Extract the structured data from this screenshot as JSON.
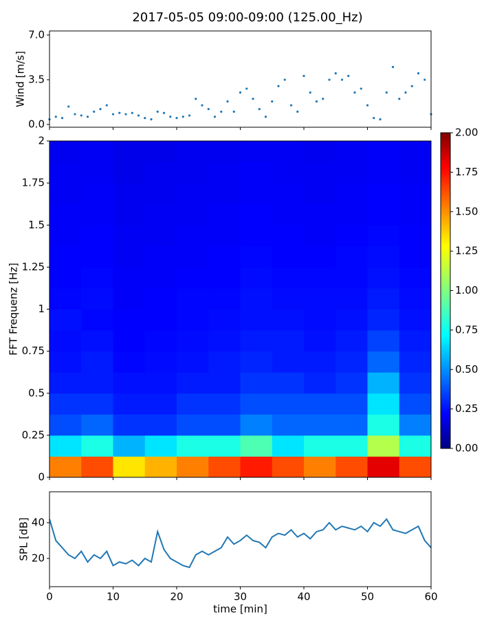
{
  "title": "2017-05-05 09:00-09:00 (125.00_Hz)",
  "chart_data": [
    {
      "type": "scatter",
      "ylabel": "Wind [m/s]",
      "color": "#1f77b4",
      "x": [
        0,
        1,
        2,
        3,
        4,
        5,
        6,
        7,
        8,
        9,
        10,
        11,
        12,
        13,
        14,
        15,
        16,
        17,
        18,
        19,
        20,
        21,
        22,
        23,
        24,
        25,
        26,
        27,
        28,
        29,
        30,
        31,
        32,
        33,
        34,
        35,
        36,
        37,
        38,
        39,
        40,
        41,
        42,
        43,
        44,
        45,
        46,
        47,
        48,
        49,
        50,
        51,
        52,
        53,
        54,
        55,
        56,
        57,
        58,
        59,
        60
      ],
      "values": [
        0.4,
        0.6,
        0.5,
        1.4,
        0.8,
        0.7,
        0.6,
        1.0,
        1.2,
        1.5,
        0.8,
        0.9,
        0.8,
        0.9,
        0.7,
        0.5,
        0.4,
        1.0,
        0.9,
        0.6,
        0.5,
        0.6,
        0.7,
        2.0,
        1.5,
        1.2,
        0.6,
        1.0,
        1.8,
        1.0,
        2.5,
        2.8,
        2.0,
        1.2,
        0.6,
        1.8,
        3.0,
        3.5,
        1.5,
        1.0,
        3.8,
        2.5,
        1.8,
        2.0,
        3.5,
        4.0,
        3.5,
        3.8,
        2.5,
        2.8,
        1.5,
        0.5,
        0.4,
        2.5,
        4.5,
        2.0,
        2.5,
        3.0,
        4.0,
        3.5,
        0.8
      ],
      "xlim": [
        0,
        60
      ],
      "xticks": [
        0,
        10,
        20,
        30,
        40,
        50,
        60
      ],
      "ylim": [
        -0.22,
        7.32
      ],
      "yticks": [
        {
          "value": 0,
          "label": "0.0"
        },
        {
          "value": 3.5,
          "label": "3.5"
        },
        {
          "value": 7,
          "label": "7.0"
        }
      ]
    },
    {
      "type": "heatmap",
      "ylabel": "FFT Frequenz [Hz]",
      "colormap": "jet",
      "clim": [
        0,
        2
      ],
      "xlim": [
        0,
        60
      ],
      "xticks": [
        0,
        10,
        20,
        30,
        40,
        50,
        60
      ],
      "ylim": [
        0,
        2
      ],
      "yticks": [
        0,
        0.25,
        0.5,
        0.75,
        1,
        1.25,
        1.5,
        1.75,
        2
      ],
      "cticks": [
        {
          "value": 0,
          "label": "0.00"
        },
        {
          "value": 0.25,
          "label": "0.25"
        },
        {
          "value": 0.5,
          "label": "0.50"
        },
        {
          "value": 0.75,
          "label": "0.75"
        },
        {
          "value": 1,
          "label": "1.00"
        },
        {
          "value": 1.25,
          "label": "1.25"
        },
        {
          "value": 1.5,
          "label": "1.50"
        },
        {
          "value": 1.75,
          "label": "1.75"
        },
        {
          "value": 2,
          "label": "2.00"
        }
      ],
      "z": [
        [
          1.5,
          1.6,
          1.3,
          1.4,
          1.5,
          1.6,
          1.7,
          1.6,
          1.5,
          1.6,
          1.8,
          1.6
        ],
        [
          0.7,
          0.8,
          0.6,
          0.7,
          0.8,
          0.8,
          0.9,
          0.7,
          0.8,
          0.8,
          1.1,
          0.8
        ],
        [
          0.4,
          0.45,
          0.35,
          0.35,
          0.4,
          0.4,
          0.5,
          0.45,
          0.45,
          0.45,
          0.8,
          0.5
        ],
        [
          0.35,
          0.35,
          0.3,
          0.3,
          0.35,
          0.35,
          0.4,
          0.4,
          0.4,
          0.4,
          0.7,
          0.4
        ],
        [
          0.3,
          0.3,
          0.28,
          0.28,
          0.3,
          0.3,
          0.35,
          0.35,
          0.32,
          0.35,
          0.6,
          0.35
        ],
        [
          0.28,
          0.3,
          0.26,
          0.27,
          0.28,
          0.3,
          0.32,
          0.3,
          0.3,
          0.32,
          0.45,
          0.32
        ],
        [
          0.27,
          0.28,
          0.25,
          0.26,
          0.27,
          0.28,
          0.3,
          0.3,
          0.28,
          0.3,
          0.38,
          0.3
        ],
        [
          0.28,
          0.26,
          0.25,
          0.25,
          0.26,
          0.27,
          0.28,
          0.28,
          0.27,
          0.28,
          0.32,
          0.28
        ],
        [
          0.26,
          0.27,
          0.24,
          0.25,
          0.26,
          0.26,
          0.28,
          0.27,
          0.27,
          0.27,
          0.3,
          0.27
        ],
        [
          0.25,
          0.26,
          0.24,
          0.24,
          0.25,
          0.25,
          0.27,
          0.26,
          0.26,
          0.26,
          0.28,
          0.26
        ],
        [
          0.25,
          0.25,
          0.23,
          0.24,
          0.24,
          0.25,
          0.26,
          0.25,
          0.25,
          0.26,
          0.27,
          0.25
        ],
        [
          0.24,
          0.25,
          0.23,
          0.23,
          0.24,
          0.24,
          0.25,
          0.25,
          0.24,
          0.25,
          0.26,
          0.25
        ],
        [
          0.24,
          0.24,
          0.22,
          0.23,
          0.23,
          0.24,
          0.25,
          0.24,
          0.24,
          0.24,
          0.25,
          0.24
        ],
        [
          0.23,
          0.24,
          0.22,
          0.22,
          0.23,
          0.23,
          0.24,
          0.24,
          0.23,
          0.24,
          0.25,
          0.24
        ],
        [
          0.23,
          0.23,
          0.21,
          0.22,
          0.22,
          0.23,
          0.24,
          0.23,
          0.23,
          0.23,
          0.24,
          0.23
        ],
        [
          0.22,
          0.23,
          0.21,
          0.21,
          0.22,
          0.22,
          0.23,
          0.23,
          0.22,
          0.23,
          0.24,
          0.23
        ]
      ]
    },
    {
      "type": "line",
      "ylabel": "SPL [dB]",
      "xlabel": "time [min]",
      "color": "#1f77b4",
      "x": [
        0,
        1,
        2,
        3,
        4,
        5,
        6,
        7,
        8,
        9,
        10,
        11,
        12,
        13,
        14,
        15,
        16,
        17,
        18,
        19,
        20,
        21,
        22,
        23,
        24,
        25,
        26,
        27,
        28,
        29,
        30,
        31,
        32,
        33,
        34,
        35,
        36,
        37,
        38,
        39,
        40,
        41,
        42,
        43,
        44,
        45,
        46,
        47,
        48,
        49,
        50,
        51,
        52,
        53,
        54,
        55,
        56,
        57,
        58,
        59,
        60
      ],
      "values": [
        42,
        30,
        26,
        22,
        20,
        24,
        18,
        22,
        20,
        24,
        16,
        18,
        17,
        19,
        16,
        20,
        18,
        35,
        25,
        20,
        18,
        16,
        15,
        22,
        24,
        22,
        24,
        26,
        32,
        28,
        30,
        33,
        30,
        29,
        26,
        32,
        34,
        33,
        36,
        32,
        34,
        31,
        35,
        36,
        40,
        36,
        38,
        37,
        36,
        38,
        35,
        40,
        38,
        42,
        36,
        35,
        34,
        36,
        38,
        30,
        26
      ],
      "xlim": [
        0,
        60
      ],
      "xticks": [
        0,
        10,
        20,
        30,
        40,
        50,
        60
      ],
      "ylim": [
        4.2,
        57.3
      ],
      "yticks": [
        20,
        40
      ]
    }
  ]
}
